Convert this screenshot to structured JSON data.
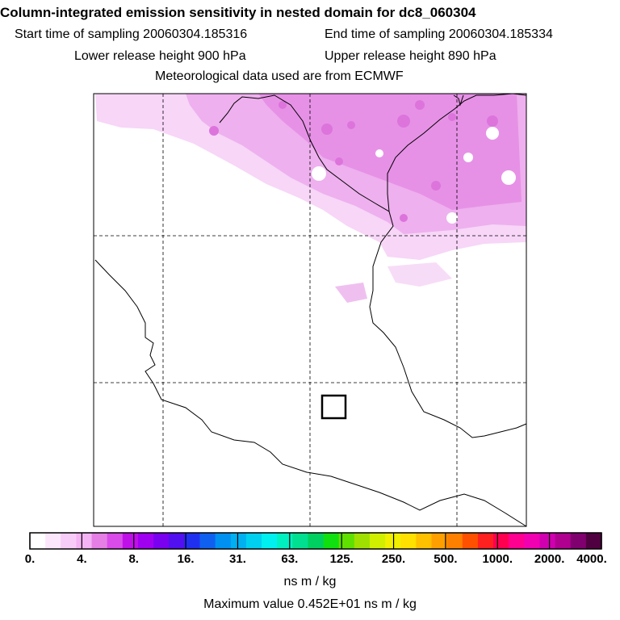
{
  "header": {
    "title": "Column-integrated emission sensitivity in nested domain for dc8_060304",
    "start_label": "Start time of sampling 20060304.185316",
    "end_label": "End time of sampling 20060304.185334",
    "lower_label": "Lower release height  900 hPa",
    "upper_label": "Upper release height  890 hPa",
    "met_label": "Meteorological data used are from ECMWF"
  },
  "colorbar": {
    "ticks": [
      "0.",
      "4.",
      "8.",
      "16.",
      "31.",
      "63.",
      "125.",
      "250.",
      "500.",
      "1000.",
      "2000.",
      "4000."
    ],
    "colors": [
      "#ffffff",
      "#fce6fc",
      "#f8ccf8",
      "#f4b3f4",
      "#e57fe5",
      "#d94ce9",
      "#c010e8",
      "#a000f0",
      "#7a00f0",
      "#5010f0",
      "#2030f0",
      "#1060f0",
      "#0090f0",
      "#00b0f0",
      "#00d0f0",
      "#00f0f0",
      "#00f0c0",
      "#00e090",
      "#00d060",
      "#10e010",
      "#60e000",
      "#a0e000",
      "#d0f000",
      "#f0f000",
      "#ffe000",
      "#ffc000",
      "#ffa000",
      "#ff8000",
      "#ff5000",
      "#ff2020",
      "#ff0050",
      "#ff0090",
      "#f000b0",
      "#d000b0",
      "#b00090",
      "#800070",
      "#500040"
    ]
  },
  "units": "ns m / kg",
  "max_value": "Maximum value  0.452E+01 ns m / kg"
}
